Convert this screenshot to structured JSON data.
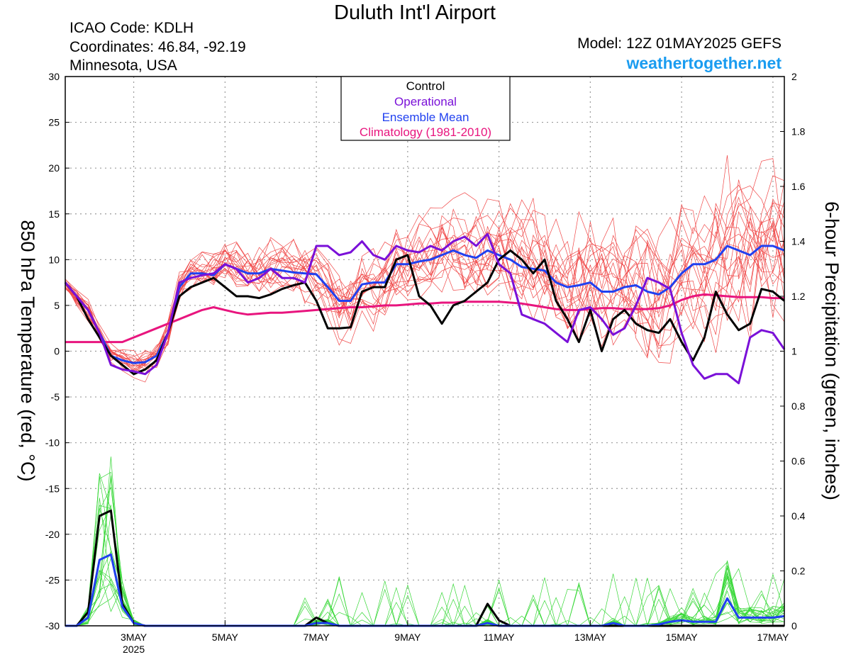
{
  "header": {
    "title": "Duluth Int'l Airport",
    "icao": "ICAO Code: KDLH",
    "coords": "Coordinates: 46.84, -92.19",
    "state": "Minnesota, USA",
    "model": "Model: 12Z 01MAY2025 GEFS",
    "site": "weathertogether.net"
  },
  "colors": {
    "control": "#000000",
    "operational": "#7a10d8",
    "ensemble_mean": "#2040f0",
    "climatology": "#e8157e",
    "members_temp": "#f04848",
    "members_precip": "#38d838",
    "site": "#1a9cf0"
  },
  "chart_data": {
    "type": "line",
    "title": "",
    "left_axis_label": "850 hPa Temperature (red, °C)",
    "right_axis_label": "6-hour Precipitation (green, inches)",
    "left_ylim": [
      -30,
      30
    ],
    "left_ticks": [
      "30",
      "25",
      "20",
      "15",
      "10",
      "5",
      "0",
      "-5",
      "-10",
      "-15",
      "-20",
      "-25",
      "-30"
    ],
    "right_ylim": [
      0,
      2
    ],
    "right_ticks": [
      "2",
      "1.8",
      "1.6",
      "1.4",
      "1.2",
      "1",
      "0.8",
      "0.6",
      "0.4",
      "0.2",
      "0"
    ],
    "x_start": "2025-05-01T12Z",
    "x_step_hours": 6,
    "x_ticks": [
      {
        "label": "3MAY",
        "sub": "2025",
        "index": 6
      },
      {
        "label": "5MAY",
        "sub": "",
        "index": 14
      },
      {
        "label": "7MAY",
        "sub": "",
        "index": 22
      },
      {
        "label": "9MAY",
        "sub": "",
        "index": 30
      },
      {
        "label": "11MAY",
        "sub": "",
        "index": 38
      },
      {
        "label": "13MAY",
        "sub": "",
        "index": 46
      },
      {
        "label": "15MAY",
        "sub": "",
        "index": 54
      },
      {
        "label": "17MAY",
        "sub": "",
        "index": 62
      }
    ],
    "grid": true,
    "legend": {
      "placement": "top-center",
      "entries": [
        {
          "label": "Control",
          "color": "#000000"
        },
        {
          "label": "Operational",
          "color": "#7a10d8"
        },
        {
          "label": "Ensemble Mean",
          "color": "#2040f0"
        },
        {
          "label": "Climatology (1981-2010)",
          "color": "#e8157e"
        }
      ]
    },
    "series": [
      {
        "name": "Control",
        "axis": "left",
        "values": [
          7.5,
          6,
          3.5,
          1.5,
          -0.5,
          -1.5,
          -2.5,
          -2,
          -1,
          2,
          6,
          7,
          7.5,
          8,
          7,
          6,
          6,
          5.8,
          6.2,
          6.8,
          7.2,
          7.5,
          5.5,
          2.5,
          2.5,
          2.6,
          6.5,
          7,
          7,
          10,
          10.5,
          6,
          5,
          3,
          5,
          5.5,
          6.5,
          7.5,
          10,
          11,
          10,
          8.5,
          10,
          5.5,
          3.5,
          1,
          4.5,
          0,
          3.5,
          4.5,
          3,
          2.3,
          2,
          3.5,
          1,
          -1,
          1.5,
          6.5,
          4,
          2.3,
          3,
          6.8,
          6.5,
          5.5
        ]
      },
      {
        "name": "Operational",
        "axis": "left",
        "values": [
          7.5,
          6,
          4.5,
          2,
          -1.5,
          -2,
          -2.2,
          -2.5,
          -1.5,
          2,
          7.5,
          8,
          8.3,
          8.5,
          9.5,
          9,
          7.5,
          8,
          9,
          8,
          8,
          7.5,
          11.5,
          11.5,
          10.5,
          10.8,
          12,
          10.5,
          10,
          11.5,
          11,
          10.8,
          11.5,
          11,
          12,
          12.5,
          11.5,
          12.8,
          9.5,
          8.5,
          4,
          3.5,
          3,
          2,
          1,
          4.5,
          4.8,
          3.5,
          1.8,
          2.5,
          5,
          8,
          7.5,
          6.8,
          2,
          -1.5,
          -3,
          -2.5,
          -2.5,
          -3.5,
          1.5,
          2.3,
          2,
          0.2
        ]
      },
      {
        "name": "Ensemble Mean",
        "axis": "left",
        "values": [
          7.5,
          6,
          4.5,
          2,
          -0.5,
          -1,
          -1.3,
          -1.2,
          -0.5,
          2,
          7,
          8.5,
          8.5,
          8.3,
          9.5,
          9,
          8.5,
          8.5,
          9,
          8.8,
          8.6,
          8.5,
          8.4,
          7,
          5.5,
          5.5,
          7.3,
          7.5,
          7.5,
          9.5,
          9.5,
          9.8,
          10,
          10.5,
          11,
          10.5,
          10.2,
          11,
          10.5,
          10,
          9.2,
          9,
          8.8,
          7.5,
          7,
          7.2,
          7.5,
          6.5,
          6.5,
          7,
          7.2,
          6.5,
          6.2,
          7,
          8.5,
          9.5,
          9.5,
          10,
          11.5,
          11,
          10.5,
          11.5,
          11.5,
          11
        ]
      },
      {
        "name": "Climatology (1981-2010)",
        "axis": "left",
        "values": [
          1,
          1,
          1,
          1,
          1,
          1,
          1.5,
          2,
          2.5,
          3,
          3.5,
          4,
          4.5,
          4.8,
          4.5,
          4.2,
          4,
          4.1,
          4.2,
          4.2,
          4.3,
          4.4,
          4.5,
          4.6,
          4.7,
          4.8,
          4.8,
          4.9,
          5,
          5,
          5.1,
          5.2,
          5.2,
          5.3,
          5.3,
          5.4,
          5.4,
          5.4,
          5.4,
          5.3,
          5.2,
          5,
          4.8,
          4.6,
          4.5,
          4.5,
          4.6,
          4.7,
          4.7,
          4.6,
          4.6,
          4.6,
          4.7,
          5,
          5.6,
          6,
          6.2,
          6.1,
          6,
          5.9,
          5.9,
          5.9,
          5.8,
          5.8
        ]
      },
      {
        "name": "Control",
        "axis": "right",
        "values": [
          0,
          0,
          0.05,
          0.4,
          0.42,
          0.08,
          0.01,
          0,
          0,
          0,
          0,
          0,
          0,
          0,
          0,
          0,
          0,
          0,
          0,
          0,
          0,
          0,
          0.03,
          0.01,
          0,
          0,
          0,
          0,
          0,
          0,
          0,
          0,
          0,
          0,
          0,
          0,
          0,
          0.08,
          0.02,
          0,
          0,
          0,
          0,
          0,
          0,
          0,
          0,
          0,
          0,
          0,
          0,
          0,
          0,
          0,
          0,
          0,
          0,
          0,
          0,
          0,
          0,
          0,
          0,
          0
        ]
      },
      {
        "name": "Ensemble Mean",
        "axis": "right",
        "values": [
          0,
          0,
          0.03,
          0.24,
          0.26,
          0.07,
          0.01,
          0,
          0,
          0,
          0,
          0,
          0,
          0,
          0,
          0,
          0,
          0,
          0,
          0,
          0,
          0,
          0.01,
          0.01,
          0,
          0,
          0,
          0,
          0,
          0,
          0,
          0,
          0,
          0,
          0,
          0,
          0,
          0.01,
          0,
          0,
          0,
          0,
          0,
          0,
          0,
          0,
          0,
          0,
          0.01,
          0,
          0,
          0,
          0.005,
          0.015,
          0.02,
          0.015,
          0.015,
          0.015,
          0.1,
          0.03,
          0.03,
          0.03,
          0.03,
          0.035
        ]
      }
    ]
  }
}
